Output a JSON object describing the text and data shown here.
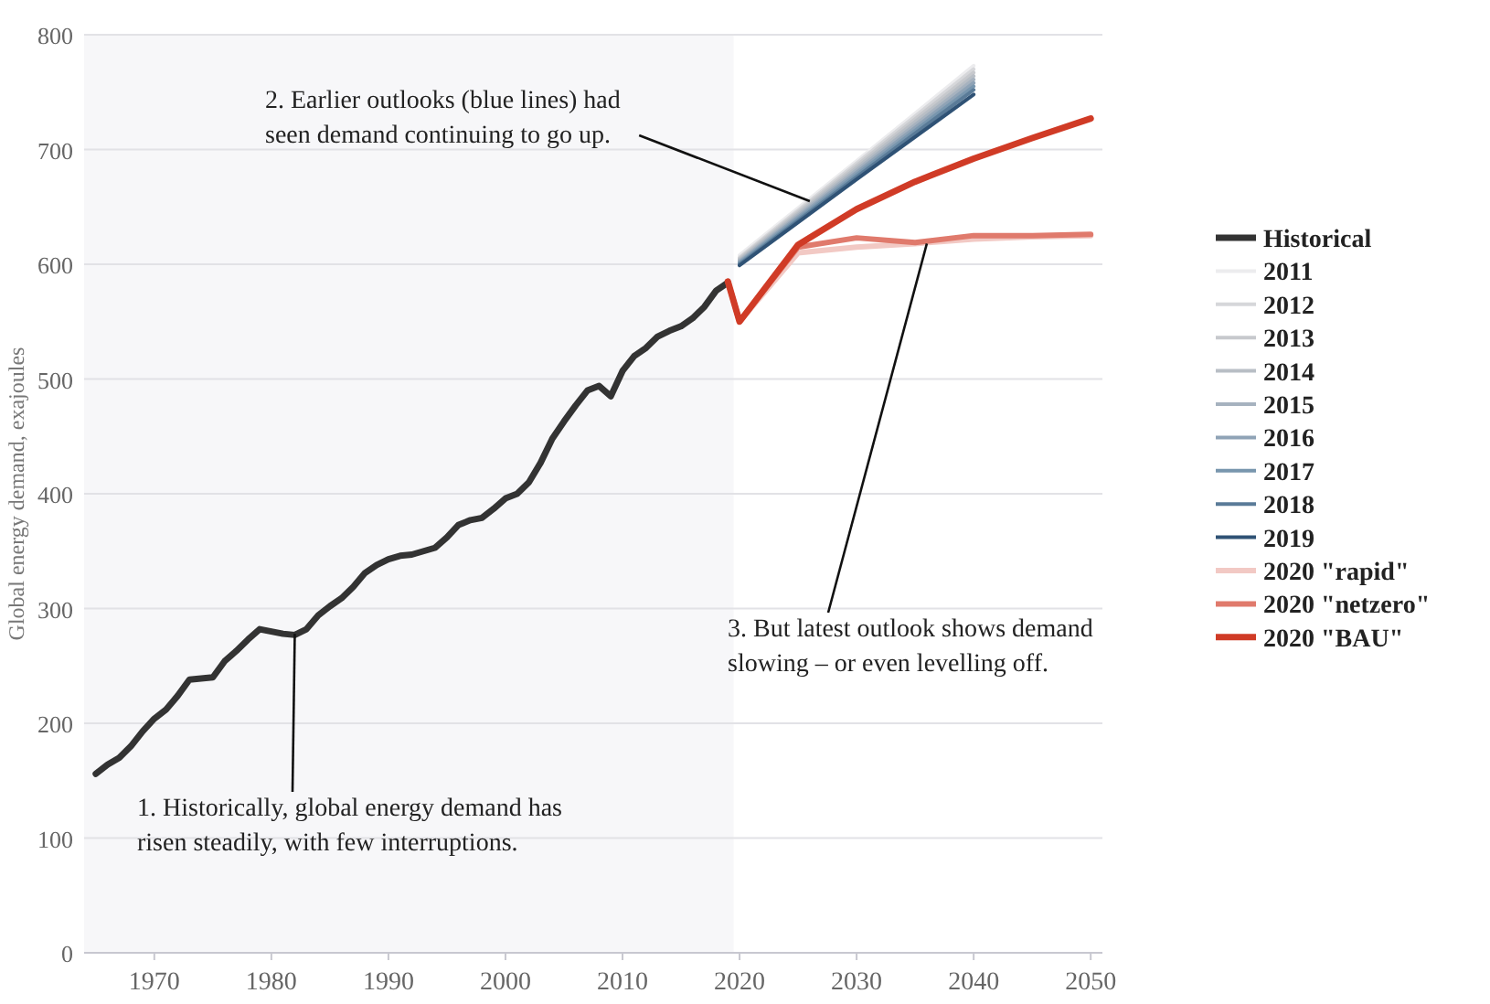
{
  "chart_data": {
    "type": "line",
    "ylabel": "Global energy demand, exajoules",
    "xlim": [
      1964,
      2051
    ],
    "xticks": [
      1970,
      1980,
      1990,
      2000,
      2010,
      2020,
      2030,
      2040,
      2050
    ],
    "ylim": [
      0,
      800
    ],
    "yticks": [
      0,
      100,
      200,
      300,
      400,
      500,
      600,
      700,
      800
    ],
    "grid": "y",
    "legend": "right",
    "marker": "none",
    "line_style": "solid",
    "bands": [
      {
        "axis": "x",
        "from": 1964,
        "to": 2019.5,
        "color": "#f7f7f9"
      }
    ],
    "annotations": [
      {
        "text": "1. Historically, global energy demand has risen steadily, with few interruptions.",
        "x": 1982,
        "y": 278
      },
      {
        "text": "2. Earlier outlooks (blue lines) had seen demand continuing to go up.",
        "x": 2026,
        "y": 655
      },
      {
        "text": "3. But latest outlook shows demand slowing – or even levelling off.",
        "x": 2036,
        "y": 618
      }
    ],
    "series": [
      {
        "name": "Historical",
        "color": "#333333",
        "x": [
          1965,
          1966,
          1967,
          1968,
          1969,
          1970,
          1971,
          1972,
          1973,
          1974,
          1975,
          1976,
          1977,
          1978,
          1979,
          1980,
          1981,
          1982,
          1983,
          1984,
          1985,
          1986,
          1987,
          1988,
          1989,
          1990,
          1991,
          1992,
          1993,
          1994,
          1995,
          1996,
          1997,
          1998,
          1999,
          2000,
          2001,
          2002,
          2003,
          2004,
          2005,
          2006,
          2007,
          2008,
          2009,
          2010,
          2011,
          2012,
          2013,
          2014,
          2015,
          2016,
          2017,
          2018,
          2019
        ],
        "values": [
          156,
          164,
          170,
          180,
          193,
          204,
          212,
          224,
          238,
          239,
          240,
          254,
          263,
          273,
          282,
          280,
          278,
          277,
          282,
          294,
          302,
          309,
          319,
          331,
          338,
          343,
          346,
          347,
          350,
          353,
          362,
          373,
          377,
          379,
          387,
          396,
          400,
          410,
          427,
          448,
          463,
          477,
          490,
          494,
          485,
          507,
          520,
          527,
          537,
          542,
          546,
          553,
          563,
          577,
          584
        ]
      },
      {
        "name": "2011",
        "color": "#ececee",
        "x": [
          2020,
          2030,
          2040
        ],
        "values": [
          608,
          690,
          773
        ]
      },
      {
        "name": "2012",
        "color": "#d6d7da",
        "x": [
          2020,
          2030,
          2040
        ],
        "values": [
          606,
          688,
          770
        ]
      },
      {
        "name": "2013",
        "color": "#c7c9cd",
        "x": [
          2020,
          2030,
          2040
        ],
        "values": [
          605,
          686,
          767
        ]
      },
      {
        "name": "2014",
        "color": "#b8bec5",
        "x": [
          2020,
          2030,
          2040
        ],
        "values": [
          604,
          684,
          764
        ]
      },
      {
        "name": "2015",
        "color": "#a6b2bf",
        "x": [
          2020,
          2030,
          2040
        ],
        "values": [
          603,
          682,
          761
        ]
      },
      {
        "name": "2016",
        "color": "#8fa3b6",
        "x": [
          2020,
          2030,
          2040
        ],
        "values": [
          602,
          680,
          758
        ]
      },
      {
        "name": "2017",
        "color": "#7896ae",
        "x": [
          2020,
          2030,
          2040
        ],
        "values": [
          601,
          678,
          755
        ]
      },
      {
        "name": "2018",
        "color": "#5a7b98",
        "x": [
          2020,
          2030,
          2040
        ],
        "values": [
          600,
          676,
          752
        ]
      },
      {
        "name": "2019",
        "color": "#2f5275",
        "x": [
          2020,
          2030,
          2040
        ],
        "values": [
          599,
          674,
          748
        ]
      },
      {
        "name": "2020 \"rapid\"",
        "color": "#f2c9c4",
        "x": [
          2019,
          2020,
          2025,
          2030,
          2035,
          2040,
          2045,
          2050
        ],
        "values": [
          585,
          550,
          610,
          615,
          618,
          622,
          624,
          625
        ]
      },
      {
        "name": "2020 \"netzero\"",
        "color": "#e07a6c",
        "x": [
          2019,
          2020,
          2025,
          2030,
          2035,
          2040,
          2045,
          2050
        ],
        "values": [
          585,
          550,
          615,
          623,
          619,
          625,
          625,
          626
        ]
      },
      {
        "name": "2020 \"BAU\"",
        "color": "#d03b26",
        "x": [
          2019,
          2020,
          2025,
          2030,
          2035,
          2040,
          2045,
          2050
        ],
        "values": [
          585,
          550,
          617,
          648,
          672,
          692,
          710,
          727
        ]
      }
    ]
  }
}
